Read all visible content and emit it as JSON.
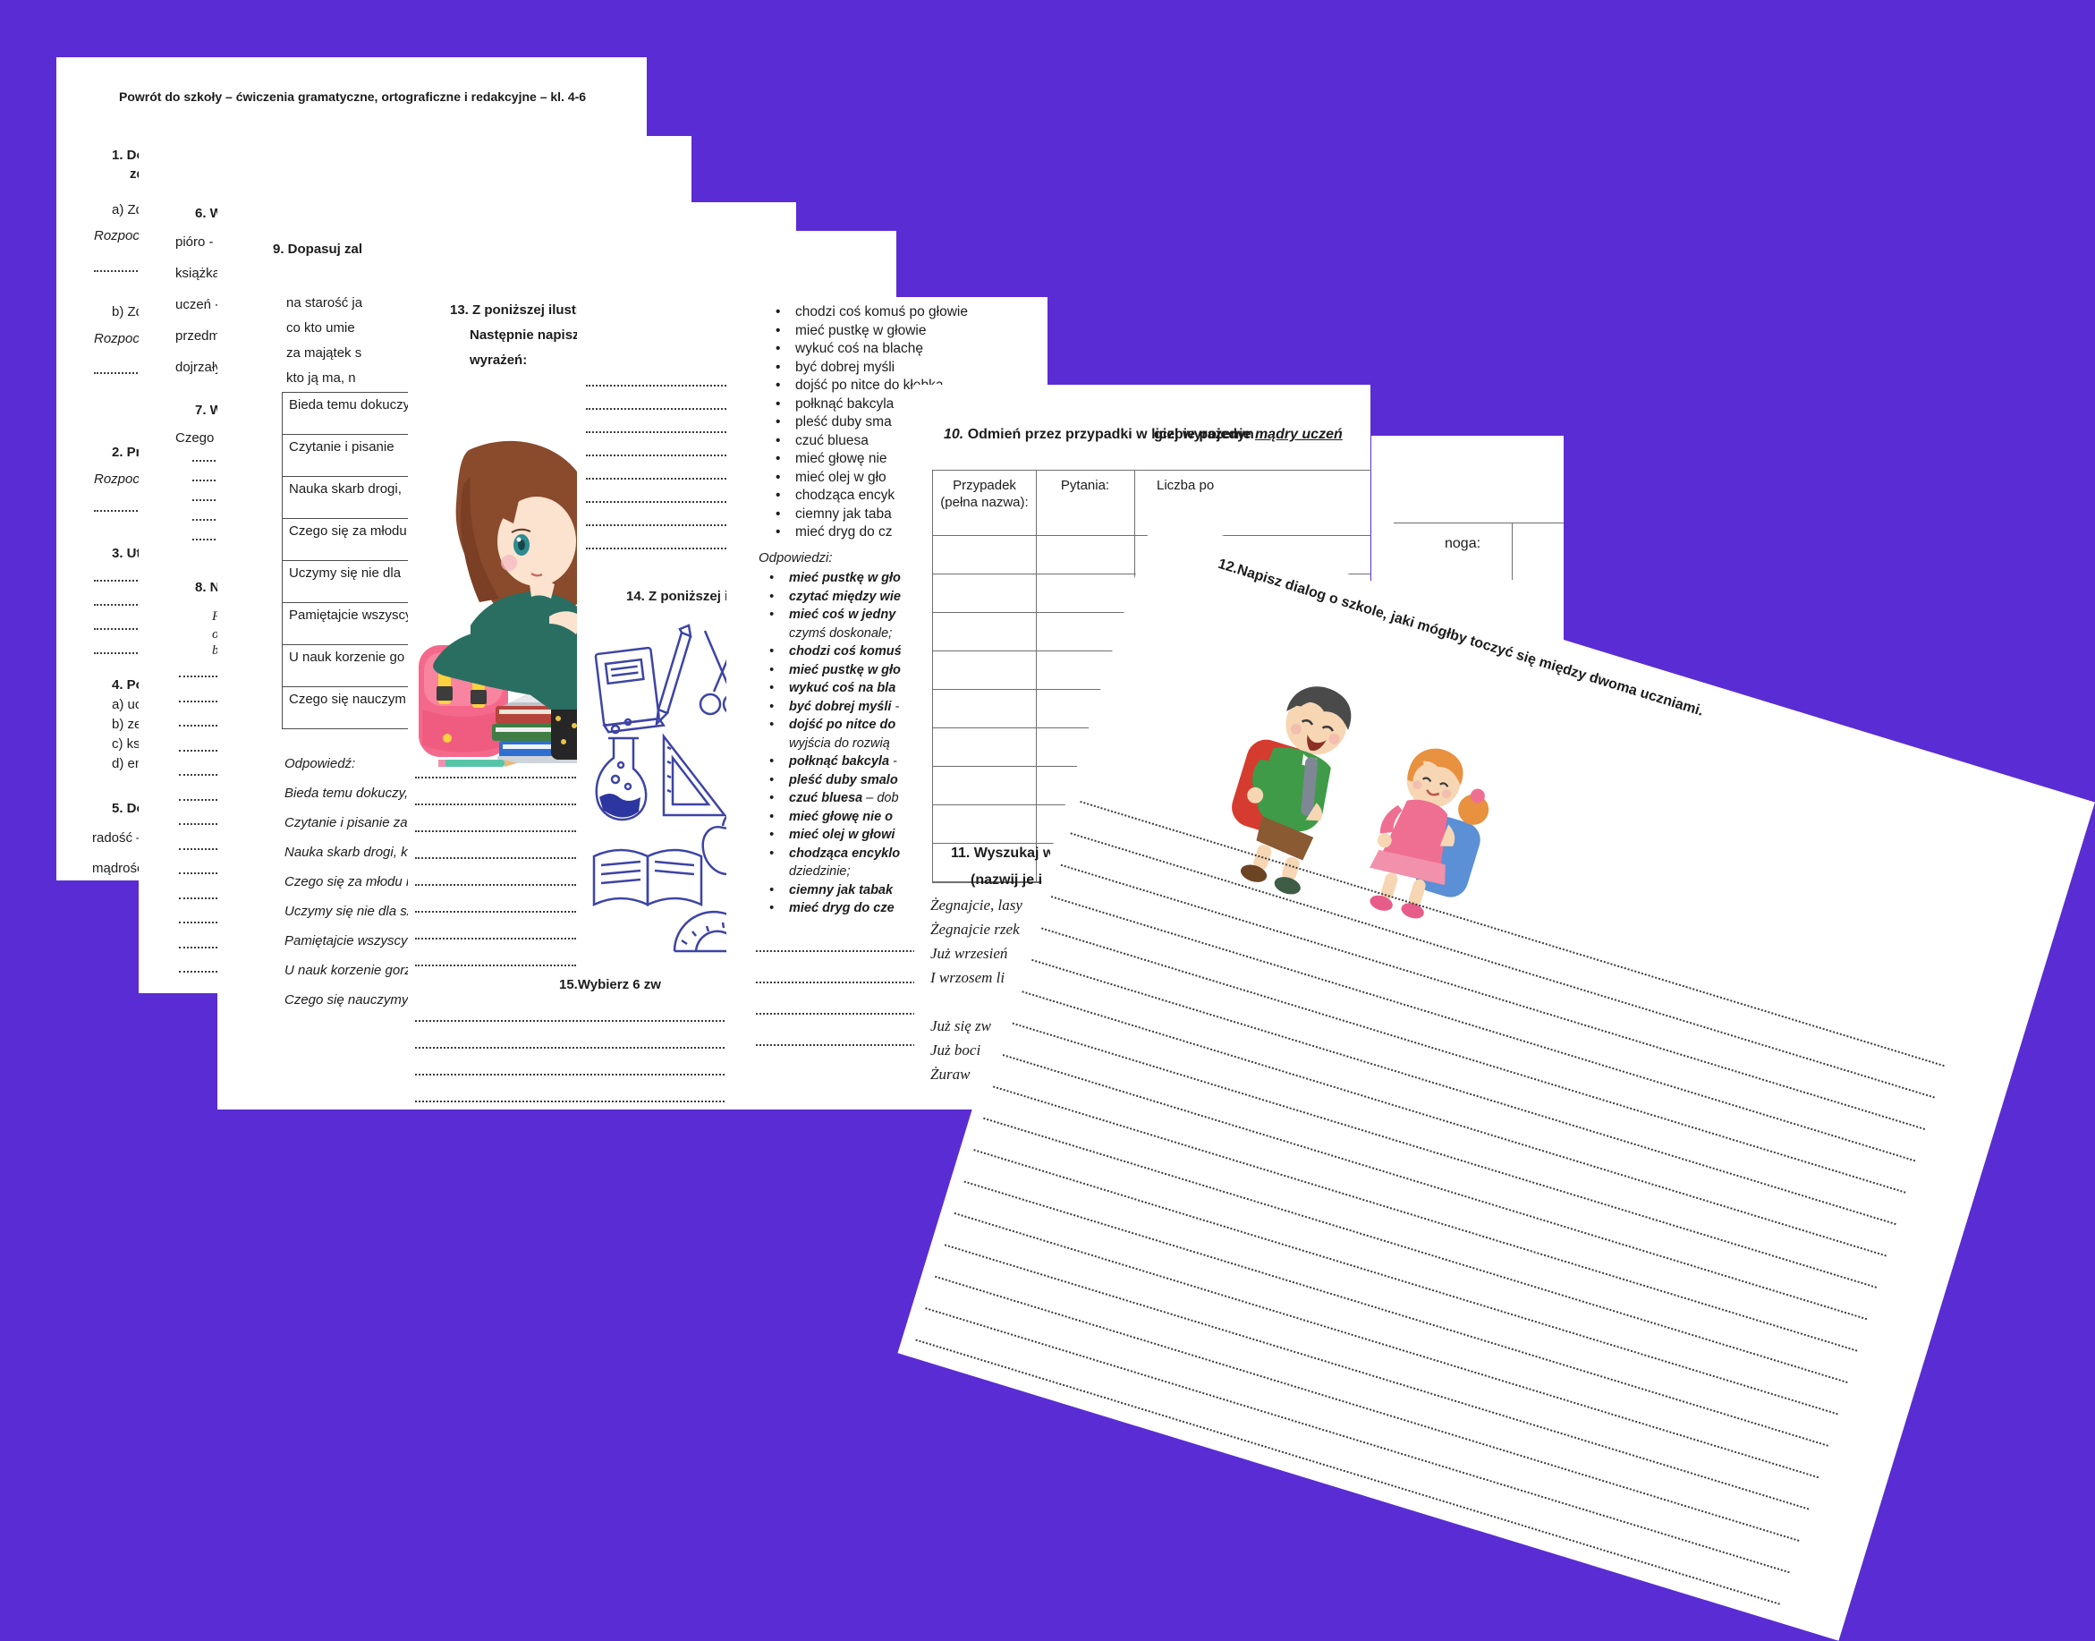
{
  "colors": {
    "background": "#5A2CD3",
    "text": "#1c1c1c",
    "line_art_blue": "#3d44a5"
  },
  "page1": {
    "title": "Powrót do szkoły – ćwiczenia gramatyczne, ortograficzne i redakcyjne – kl. 4-6",
    "item1_l1": "1. Do",
    "item1_l2": "zd",
    "item1a": "a) Zd",
    "start1": "Rozpoczęcie",
    "item1b": "b) Zd",
    "start2": "Rozpoczęcie",
    "item2": "2. Pr",
    "start3": "Rozpoczęcie",
    "item3": "3. Ut",
    "item4": "4. Po",
    "item4a": "a) uc",
    "item4b": "b) ze",
    "item4c": "c) ks",
    "item4d": "d) en",
    "item5": "5. Do",
    "word1": "radość –",
    "word2": "mądrość"
  },
  "page2": {
    "item6": "6. Wypisz",
    "w1": "pióro - ...",
    "w2": "książka - .",
    "w3": "uczeń - ...",
    "w4": "przedmioty",
    "w5": "dojrzały",
    "item7": "7. Wypisz",
    "czego": "Czego Jaś",
    "item8": "8. Napisz",
    "serif_l1": "P",
    "serif_l2": "o",
    "serif_l3": "b"
  },
  "page3": {
    "item9": "9. Dopasuj zal",
    "proverbs": [
      "na starość ja",
      "co kto umie",
      "za majątek s",
      "kto ją ma, n"
    ],
    "table_rows": [
      "Bieda temu dokuczy",
      "Czytanie i pisanie",
      "Nauka skarb drogi,",
      "Czego się za młodu",
      "Uczymy się nie dla",
      "Pamiętajcie wszyscy",
      "U nauk korzenie go",
      "Czego się nauczym"
    ],
    "odp_label": "Odpowiedź:",
    "answers": [
      "Bieda temu dokuczy,",
      "Czytanie i pisanie za r",
      "Nauka skarb drogi, kt",
      "Czego się za młodu n",
      "Uczymy się nie dla sz",
      "Pamiętajcie wszyscy",
      "U nauk korzenie gorz",
      "Czego się nauczymy,"
    ]
  },
  "page4": {
    "item13_l1": "13. Z poniższej ilustracji",
    "item13_l2": "Następnie napisz",
    "item13_l3": "wyrażeń:",
    "item15": "15.Wybierz 6 zw",
    "illustration": "girl-student-with-backpack-and-books"
  },
  "page5": {
    "item14": "14. Z poniższej ilustracji",
    "illustration": "blue-line-art-school-supplies"
  },
  "page6": {
    "idioms": [
      "chodzi coś komuś po głowie",
      "mieć pustkę w głowie",
      "wykuć coś na blachę",
      "być dobrej myśli",
      "dojść po nitce do kłębka",
      "połknąć bakcyla",
      "pleść duby sma",
      "czuć bluesa",
      "mieć głowę nie",
      "mieć olej w gło",
      "chodząca encyk",
      "ciemny jak taba",
      "mieć dryg do cz"
    ],
    "odp_label": "Odpowiedzi:",
    "answers": [
      {
        "b": "mieć pustkę w gło",
        "r": ""
      },
      {
        "b": "czytać między wie",
        "r": ""
      },
      {
        "b": "mieć coś w jedny",
        "r": ""
      },
      {
        "b": "",
        "r": "czymś doskonale;",
        "cont": true
      },
      {
        "b": "chodzi coś komuś",
        "r": ""
      },
      {
        "b": "mieć pustkę w gło",
        "r": ""
      },
      {
        "b": "wykuć coś na bla",
        "r": ""
      },
      {
        "b": "być dobrej myśli",
        "r": " -"
      },
      {
        "b": "dojść po nitce do",
        "r": ""
      },
      {
        "b": "",
        "r": "wyjścia do rozwią",
        "cont": true
      },
      {
        "b": "połknąć bakcyla",
        "r": " -"
      },
      {
        "b": "pleść duby smalo",
        "r": ""
      },
      {
        "b": "czuć bluesa",
        "r": " – dob"
      },
      {
        "b": "mieć głowę nie o",
        "r": ""
      },
      {
        "b": "mieć olej w głowi",
        "r": ""
      },
      {
        "b": "chodząca encyklo",
        "r": ""
      },
      {
        "b": "",
        "r": "dziedzinie;",
        "cont": true
      },
      {
        "b": "ciemny jak tabak",
        "r": ""
      },
      {
        "b": "mieć dryg do cze",
        "r": ""
      }
    ]
  },
  "page7": {
    "title_num": "10.",
    "title_left": " Odmień przez przypadki w liczbie pojedyn",
    "title_right_pre": "giej wyrażenie ",
    "title_right_phrase": "mądry uczeń",
    "th1": "Przypadek (pełna nazwa):",
    "th2": "Pytania:",
    "th3": "Liczba po",
    "item11_l1": "11. Wyszukaj w",
    "item11_l2": "(nazwij je i",
    "poem_stanza1": [
      "Żegnajcie, lasy",
      "Żegnajcie rzek",
      "Już wrzesień",
      "I wrzosem li"
    ],
    "poem_stanza2": [
      "Już się zw",
      "Już boci",
      "Żuraw"
    ]
  },
  "page7b": {
    "cell_label": "noga:"
  },
  "page8": {
    "item12": "12.Napisz dialog o szkole, jaki mógłby toczyć się między dwoma uczniami.",
    "illustration": "boy-and-girl-with-backpacks"
  }
}
